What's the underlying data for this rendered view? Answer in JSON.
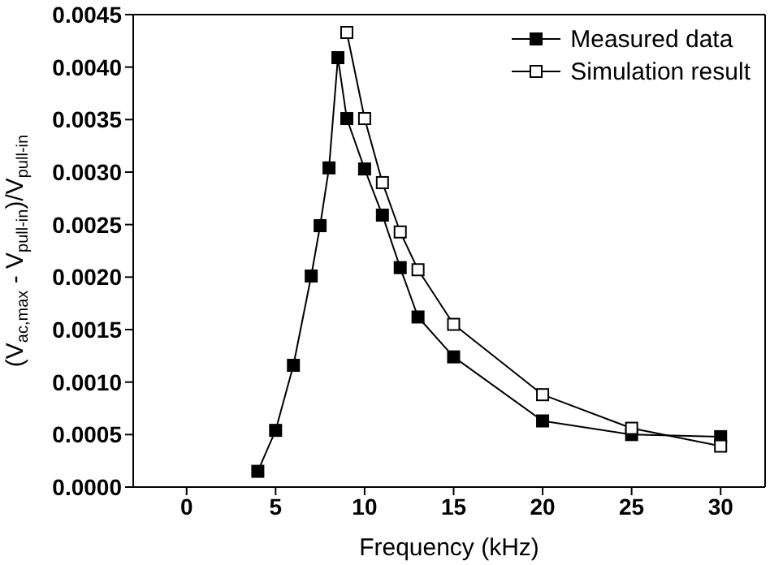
{
  "chart_data": {
    "type": "line",
    "xlabel": "Frequency (kHz)",
    "ylabel": "(V$_{ac,max}$ - V$_{pull-in}$)/V$_{pull-in}$",
    "xlim": [
      -3,
      32.5
    ],
    "xticks": [
      0,
      5,
      10,
      15,
      20,
      25,
      30
    ],
    "ylim": [
      0,
      0.0045
    ],
    "yticks": [
      {
        "value": 0,
        "label": "0.0000"
      },
      {
        "value": 0.0005,
        "label": "0.0005"
      },
      {
        "value": 0.001,
        "label": "0.0010"
      },
      {
        "value": 0.0015,
        "label": "0.0015"
      },
      {
        "value": 0.002,
        "label": "0.0020"
      },
      {
        "value": 0.0025,
        "label": "0.0025"
      },
      {
        "value": 0.003,
        "label": "0.0030"
      },
      {
        "value": 0.0035,
        "label": "0.0035"
      },
      {
        "value": 0.004,
        "label": "0.0040"
      },
      {
        "value": 0.0045,
        "label": "0.0045"
      }
    ],
    "marker": "square",
    "legend": "top right",
    "series": [
      {
        "name": "Measured data",
        "color": "#000000",
        "x": [
          4,
          5,
          6,
          7,
          7.5,
          8,
          8.5,
          9,
          10,
          11,
          12,
          13,
          15,
          20,
          25,
          30
        ],
        "values": [
          0.00015,
          0.00054,
          0.00116,
          0.00201,
          0.00249,
          0.00304,
          0.00409,
          0.00351,
          0.00303,
          0.00259,
          0.00209,
          0.00162,
          0.00124,
          0.00063,
          0.0005,
          0.00048
        ]
      },
      {
        "name": "Simulation result",
        "color": "#000000",
        "x": [
          9,
          10,
          11,
          12,
          13,
          15,
          20,
          25,
          30
        ],
        "values": [
          0.00433,
          0.00351,
          0.0029,
          0.00243,
          0.00207,
          0.00155,
          0.00088,
          0.00056,
          0.00039
        ]
      }
    ]
  }
}
